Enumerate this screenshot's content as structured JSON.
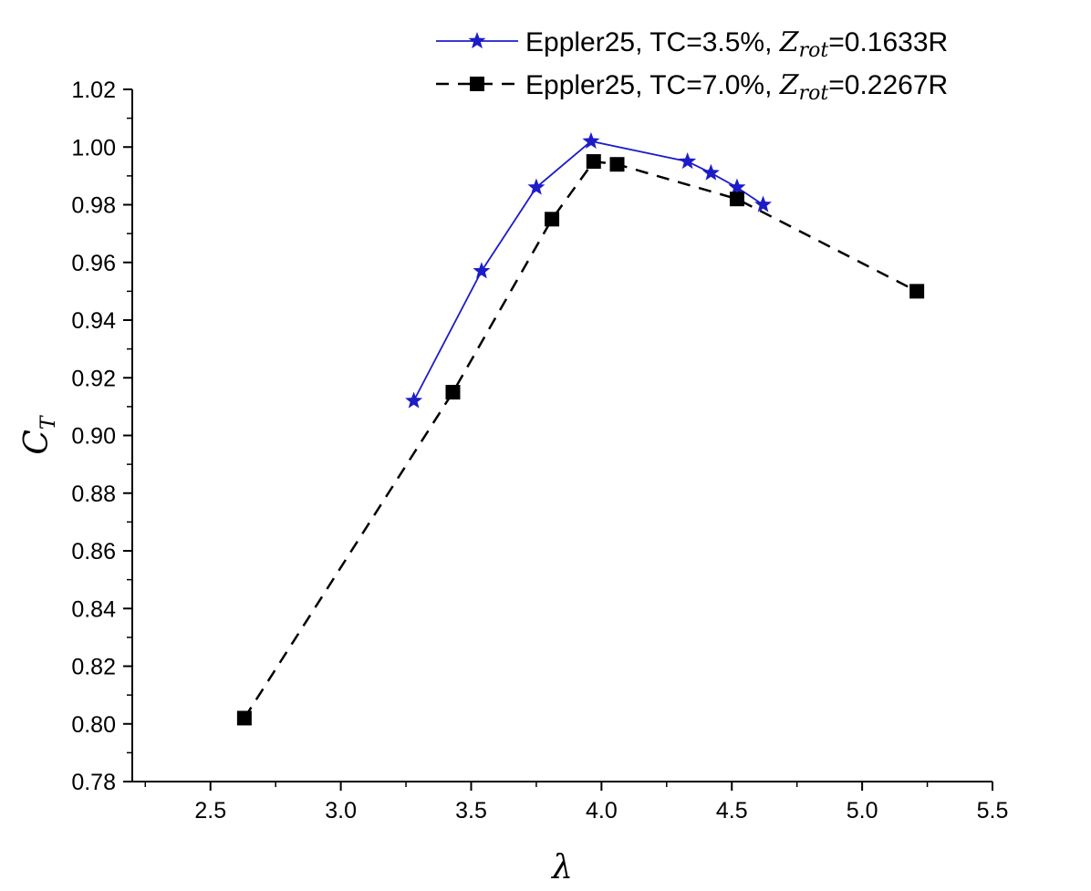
{
  "chart_data": {
    "type": "line",
    "xlabel": "λ",
    "ylabel": {
      "main": "C",
      "sub": "T"
    },
    "xlim": [
      2.2,
      5.5
    ],
    "ylim": [
      0.78,
      1.02
    ],
    "xticks": [
      2.5,
      3.0,
      3.5,
      4.0,
      4.5,
      5.0,
      5.5
    ],
    "xtick_labels": [
      "2.5",
      "3.0",
      "3.5",
      "4.0",
      "4.5",
      "5.0",
      "5.5"
    ],
    "yticks": [
      0.78,
      0.8,
      0.82,
      0.84,
      0.86,
      0.88,
      0.9,
      0.92,
      0.94,
      0.96,
      0.98,
      1.0,
      1.02
    ],
    "ytick_labels": [
      "0.78",
      "0.80",
      "0.82",
      "0.84",
      "0.86",
      "0.88",
      "0.90",
      "0.92",
      "0.94",
      "0.96",
      "0.98",
      "1.00",
      "1.02"
    ],
    "grid": false,
    "legend_position": "top-right",
    "series": [
      {
        "name": "Eppler25, TC=3.5%, Zrot=0.1633R",
        "legend": {
          "pre": "Eppler25, TC=3.5%, ",
          "var": "Z",
          "sub": "rot",
          "post": "=0.1633R"
        },
        "color": "#1c1cc8",
        "line_style": "solid",
        "marker": "star",
        "x": [
          3.28,
          3.54,
          3.75,
          3.96,
          4.33,
          4.42,
          4.52,
          4.62
        ],
        "y": [
          0.912,
          0.957,
          0.986,
          1.002,
          0.995,
          0.991,
          0.986,
          0.98
        ]
      },
      {
        "name": "Eppler25, TC=7.0%, Zrot=0.2267R",
        "legend": {
          "pre": "Eppler25, TC=7.0%, ",
          "var": "Z",
          "sub": "rot",
          "post": "=0.2267R"
        },
        "color": "#000000",
        "line_style": "dashed",
        "marker": "square",
        "x": [
          2.63,
          3.43,
          3.81,
          3.97,
          4.06,
          4.52,
          5.21
        ],
        "y": [
          0.802,
          0.915,
          0.975,
          0.995,
          0.994,
          0.982,
          0.95
        ]
      }
    ]
  }
}
